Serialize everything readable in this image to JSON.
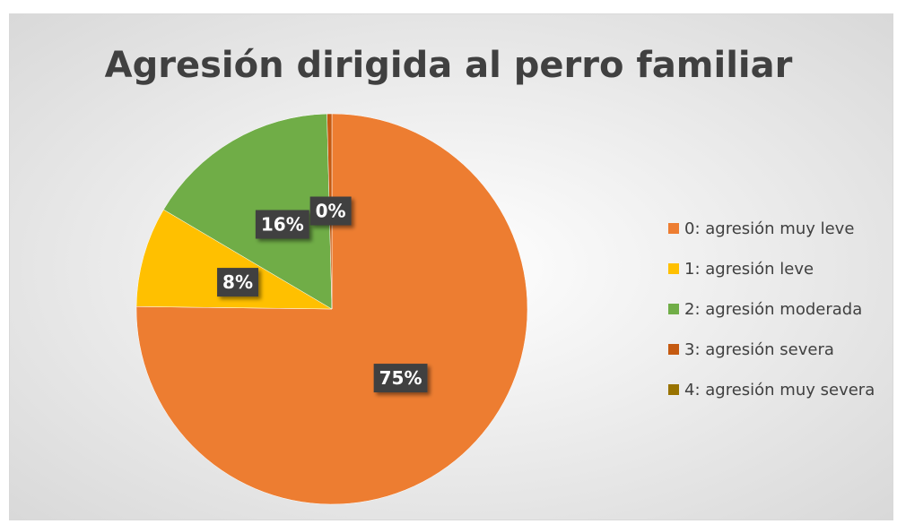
{
  "chart_data": {
    "type": "pie",
    "title": "Agresión dirigida al perro familiar",
    "categories": [
      "0: agresión muy leve",
      "1: agresión leve",
      "2: agresión moderada",
      "3: agresión severa",
      "4: agresión muy severa"
    ],
    "values": [
      75.2,
      8.3,
      16.1,
      0.4,
      0
    ],
    "value_labels": [
      "75%",
      "8%",
      "16%",
      "0%",
      null
    ],
    "colors": [
      "#ED7D31",
      "#FFC000",
      "#70AD47",
      "#C55A11",
      "#997300"
    ],
    "legend": "right"
  }
}
